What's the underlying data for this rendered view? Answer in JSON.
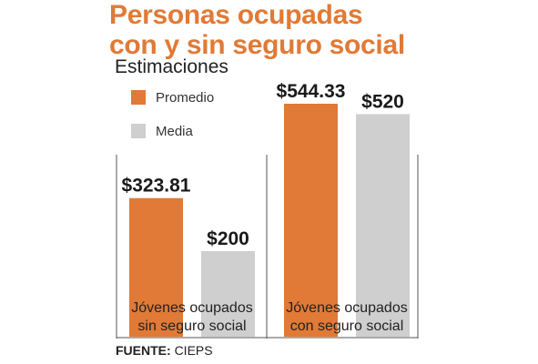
{
  "title_line1": "Personas ocupadas",
  "title_line2": "con y sin seguro social",
  "subtitle": "Estimaciones",
  "legend": [
    {
      "label": "Promedio",
      "color": "#e07a36"
    },
    {
      "label": "Media",
      "color": "#cfcfcf"
    }
  ],
  "source_label": "FUENTE:",
  "source_value": "CIEPS",
  "chart_data": {
    "type": "bar",
    "categories": [
      [
        "Jóvenes ocupados",
        "sin seguro social"
      ],
      [
        "Jóvenes ocupados",
        "con seguro social"
      ]
    ],
    "series": [
      {
        "name": "Promedio",
        "values": [
          323.81,
          544.33
        ],
        "labels": [
          "$323.81",
          "$544.33"
        ],
        "color": "#e07a36"
      },
      {
        "name": "Media",
        "values": [
          200,
          520
        ],
        "labels": [
          "$200",
          "$520"
        ],
        "color": "#cfcfcf"
      }
    ],
    "ylim": [
      0,
      544.33
    ],
    "grid": false,
    "legend_position": "top-left"
  }
}
